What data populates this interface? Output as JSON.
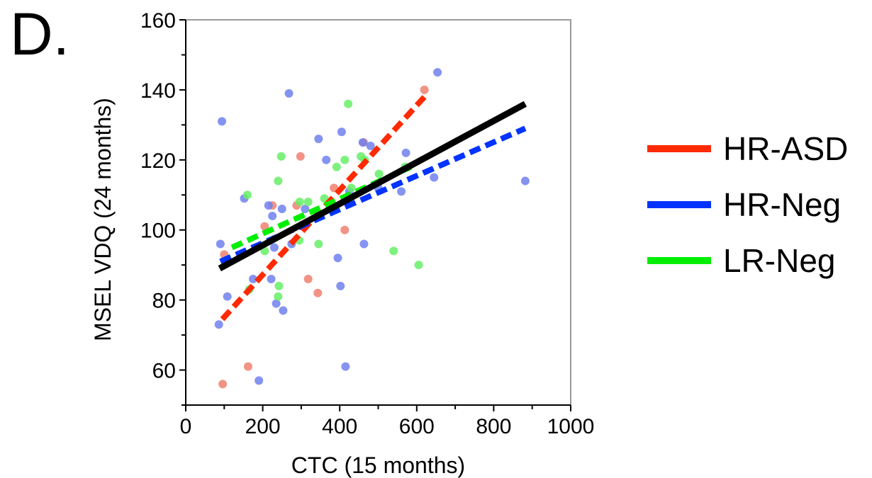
{
  "panel_label": "D.",
  "chart_data": {
    "type": "scatter",
    "xlabel": "CTC (15 months)",
    "ylabel": "MSEL VDQ (24 months)",
    "xlim": [
      0,
      1000
    ],
    "ylim": [
      50,
      160
    ],
    "x_ticks": [
      0,
      200,
      400,
      600,
      800,
      1000
    ],
    "x_tick_labels": [
      "0",
      "200",
      "400",
      "600",
      "800",
      "1000"
    ],
    "y_ticks": [
      60,
      80,
      100,
      120,
      140,
      160
    ],
    "y_tick_labels": [
      "60",
      "80",
      "100",
      "120",
      "140",
      "160"
    ],
    "grid": false,
    "legend_position": "right",
    "series": [
      {
        "name": "HR-ASD",
        "color": "#ff2a00",
        "point_color": "#f08070",
        "points": [
          [
            96,
            56
          ],
          [
            100,
            93
          ],
          [
            162,
            61
          ],
          [
            205,
            101
          ],
          [
            225,
            107
          ],
          [
            288,
            107
          ],
          [
            298,
            121
          ],
          [
            318,
            86
          ],
          [
            343,
            82
          ],
          [
            385,
            112
          ],
          [
            413,
            100
          ],
          [
            462,
            125
          ],
          [
            620,
            140
          ]
        ],
        "fit": {
          "style": "dashed",
          "x": [
            95,
            620
          ],
          "y": [
            74.5,
            138
          ]
        }
      },
      {
        "name": "HR-Neg",
        "color": "#0033ff",
        "point_color": "#7080ee",
        "points": [
          [
            86,
            73
          ],
          [
            90,
            96
          ],
          [
            94,
            131
          ],
          [
            108,
            81
          ],
          [
            152,
            109
          ],
          [
            175,
            86
          ],
          [
            190,
            57
          ],
          [
            215,
            107
          ],
          [
            222,
            86
          ],
          [
            225,
            104
          ],
          [
            230,
            95
          ],
          [
            235,
            79
          ],
          [
            250,
            106
          ],
          [
            253,
            77
          ],
          [
            268,
            139
          ],
          [
            275,
            96
          ],
          [
            310,
            106
          ],
          [
            345,
            126
          ],
          [
            365,
            120
          ],
          [
            395,
            92
          ],
          [
            402,
            84
          ],
          [
            405,
            128
          ],
          [
            415,
            61
          ],
          [
            425,
            111
          ],
          [
            460,
            125
          ],
          [
            463,
            96
          ],
          [
            480,
            124
          ],
          [
            500,
            112
          ],
          [
            560,
            111
          ],
          [
            572,
            122
          ],
          [
            645,
            115
          ],
          [
            654,
            145
          ],
          [
            882,
            114
          ]
        ],
        "fit": {
          "style": "dashed",
          "x": [
            90,
            882
          ],
          "y": [
            91,
            129
          ]
        }
      },
      {
        "name": "LR-Neg",
        "color": "#00ee00",
        "point_color": "#66ee66",
        "points": [
          [
            160,
            110
          ],
          [
            165,
            83
          ],
          [
            205,
            94
          ],
          [
            240,
            114
          ],
          [
            242,
            84
          ],
          [
            240,
            81
          ],
          [
            248,
            121
          ],
          [
            295,
            97
          ],
          [
            296,
            108
          ],
          [
            318,
            108
          ],
          [
            345,
            96
          ],
          [
            360,
            109
          ],
          [
            392,
            118
          ],
          [
            413,
            120
          ],
          [
            422,
            136
          ],
          [
            430,
            112
          ],
          [
            455,
            121
          ],
          [
            465,
            120
          ],
          [
            502,
            116
          ],
          [
            540,
            94
          ],
          [
            570,
            118
          ],
          [
            605,
            90
          ]
        ],
        "fit": {
          "style": "dashed",
          "x": [
            120,
            585
          ],
          "y": [
            95,
            118
          ]
        }
      },
      {
        "name": "",
        "color": "#000000",
        "points": [],
        "fit": {
          "style": "solid",
          "x": [
            88,
            882
          ],
          "y": [
            89,
            136
          ]
        }
      }
    ]
  }
}
